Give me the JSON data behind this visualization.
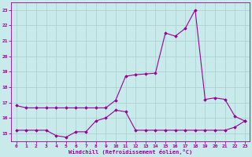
{
  "upper_x": [
    0,
    1,
    2,
    3,
    4,
    5,
    6,
    7,
    8,
    9,
    10,
    11,
    12,
    13,
    14,
    15,
    16,
    17,
    18,
    19,
    20,
    21,
    22,
    23
  ],
  "upper_y": [
    16.8,
    16.65,
    16.65,
    16.65,
    16.65,
    16.65,
    16.65,
    16.65,
    16.65,
    16.65,
    17.15,
    18.7,
    18.8,
    18.85,
    18.9,
    21.5,
    21.3,
    21.8,
    23.0,
    17.2,
    17.3,
    17.2,
    16.1,
    15.8
  ],
  "lower_x": [
    0,
    1,
    2,
    3,
    4,
    5,
    6,
    7,
    8,
    9,
    10,
    11,
    12,
    13,
    14,
    15,
    16,
    17,
    18,
    19,
    20,
    21,
    22,
    23
  ],
  "lower_y": [
    15.2,
    15.2,
    15.2,
    15.2,
    14.85,
    14.75,
    15.1,
    15.1,
    15.8,
    16.0,
    16.5,
    16.4,
    15.2,
    15.2,
    15.2,
    15.2,
    15.2,
    15.2,
    15.2,
    15.2,
    15.2,
    15.2,
    15.4,
    15.8
  ],
  "line_color": "#990099",
  "bg_color": "#c8eaea",
  "grid_color": "#a8cece",
  "xlabel": "Windchill (Refroidissement éolien,°C)",
  "ylim": [
    14.5,
    23.5
  ],
  "xlim": [
    -0.5,
    23.5
  ],
  "yticks": [
    15,
    16,
    17,
    18,
    19,
    20,
    21,
    22,
    23
  ],
  "xticks": [
    0,
    1,
    2,
    3,
    4,
    5,
    6,
    7,
    8,
    9,
    10,
    11,
    12,
    13,
    14,
    15,
    16,
    17,
    18,
    19,
    20,
    21,
    22,
    23
  ]
}
